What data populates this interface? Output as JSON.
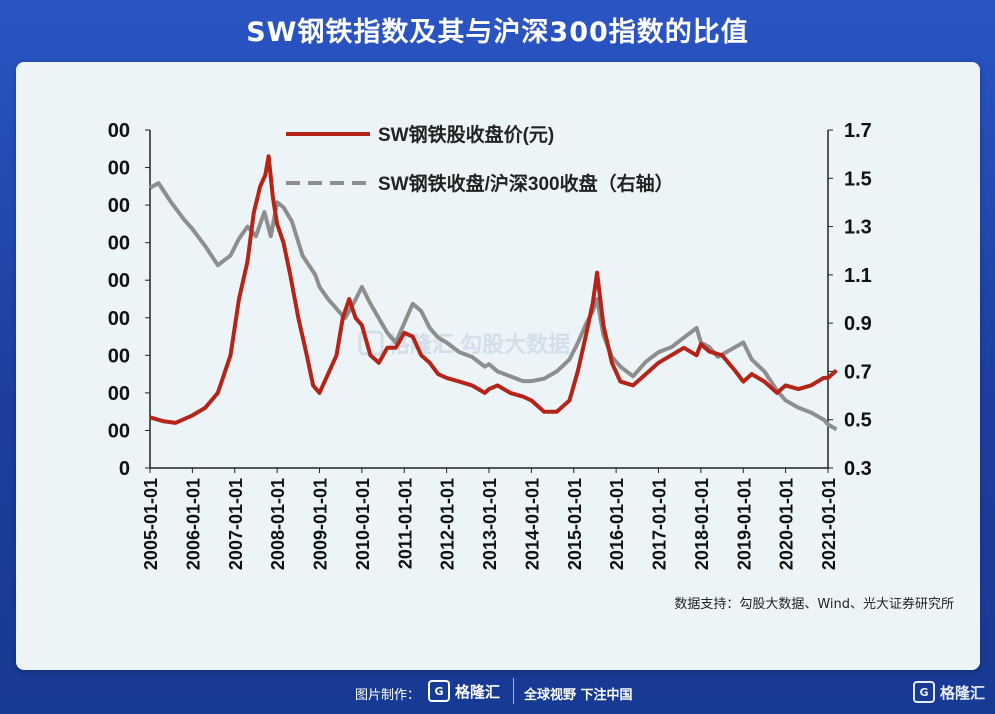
{
  "title": "SW钢铁指数及其与沪深300指数的比值",
  "source": "数据支持：勾股大数据、Wind、光大证券研究所",
  "footer": {
    "made_by": "图片制作：",
    "logo": "格隆汇",
    "slogan": "全球视野 下注中国",
    "corner_logo": "格隆汇"
  },
  "watermark": "格隆汇   勾股大数据",
  "chart_data": {
    "type": "line",
    "x_tick_labels": [
      "2005-01-01",
      "2006-01-01",
      "2007-01-01",
      "2008-01-01",
      "2009-01-01",
      "2010-01-01",
      "2011-01-01",
      "2012-01-01",
      "2013-01-01",
      "2014-01-01",
      "2015-01-01",
      "2016-01-01",
      "2017-01-01",
      "2018-01-01",
      "2019-01-01",
      "2020-01-01",
      "2021-01-01"
    ],
    "y_left_tick_labels": [
      "0",
      "00",
      "00",
      "00",
      "00",
      "00",
      "00",
      "00",
      "00",
      "00"
    ],
    "y_right_tick_labels": [
      "0.3",
      "0.5",
      "0.7",
      "0.9",
      "1.1",
      "1.3",
      "1.5",
      "1.7"
    ],
    "ylim_right": [
      0.3,
      1.7
    ],
    "legend_position": "top-center",
    "colors": {
      "price": "#b52418",
      "ratio": "#8e8e8e"
    },
    "series": [
      {
        "name": "SW钢铁股收盘价(元)",
        "axis": "left",
        "x": [
          2005.0,
          2005.3,
          2005.6,
          2006.0,
          2006.3,
          2006.6,
          2006.9,
          2007.1,
          2007.3,
          2007.45,
          2007.6,
          2007.72,
          2007.8,
          2007.9,
          2008.0,
          2008.15,
          2008.3,
          2008.5,
          2008.7,
          2008.85,
          2009.0,
          2009.2,
          2009.4,
          2009.55,
          2009.7,
          2009.85,
          2010.0,
          2010.2,
          2010.4,
          2010.6,
          2010.8,
          2011.0,
          2011.2,
          2011.4,
          2011.6,
          2011.8,
          2012.0,
          2012.3,
          2012.6,
          2012.9,
          2013.0,
          2013.2,
          2013.5,
          2013.8,
          2014.0,
          2014.3,
          2014.6,
          2014.9,
          2015.1,
          2015.3,
          2015.45,
          2015.55,
          2015.7,
          2015.9,
          2016.1,
          2016.4,
          2016.7,
          2017.0,
          2017.3,
          2017.6,
          2017.9,
          2018.0,
          2018.2,
          2018.5,
          2018.8,
          2019.0,
          2019.2,
          2019.5,
          2019.8,
          2020.0,
          2020.3,
          2020.6,
          2020.9,
          2021.0,
          2021.2
        ],
        "values": [
          1.35,
          1.25,
          1.2,
          1.4,
          1.6,
          2.0,
          3.0,
          4.5,
          5.5,
          6.8,
          7.5,
          7.8,
          8.3,
          7.2,
          6.5,
          6.0,
          5.2,
          4.0,
          3.0,
          2.2,
          2.0,
          2.5,
          3.0,
          4.0,
          4.5,
          4.0,
          3.8,
          3.0,
          2.8,
          3.2,
          3.2,
          3.6,
          3.5,
          3.0,
          2.8,
          2.5,
          2.4,
          2.3,
          2.2,
          2.0,
          2.1,
          2.2,
          2.0,
          1.9,
          1.8,
          1.5,
          1.5,
          1.8,
          2.6,
          3.6,
          4.4,
          5.2,
          3.8,
          2.8,
          2.3,
          2.2,
          2.5,
          2.8,
          3.0,
          3.2,
          3.0,
          3.3,
          3.1,
          3.0,
          2.6,
          2.3,
          2.5,
          2.3,
          2.0,
          2.2,
          2.1,
          2.2,
          2.4,
          2.4,
          2.6
        ]
      },
      {
        "name": "SW钢铁收盘/沪深300收盘（右轴）",
        "axis": "right",
        "x": [
          2005.0,
          2005.2,
          2005.5,
          2005.8,
          2006.0,
          2006.3,
          2006.6,
          2006.9,
          2007.1,
          2007.3,
          2007.5,
          2007.7,
          2007.85,
          2008.0,
          2008.15,
          2008.35,
          2008.6,
          2008.9,
          2009.0,
          2009.2,
          2009.4,
          2009.6,
          2009.8,
          2010.0,
          2010.2,
          2010.4,
          2010.6,
          2010.8,
          2011.0,
          2011.2,
          2011.4,
          2011.6,
          2011.8,
          2012.0,
          2012.3,
          2012.6,
          2012.9,
          2013.0,
          2013.2,
          2013.5,
          2013.8,
          2014.0,
          2014.3,
          2014.6,
          2014.9,
          2015.1,
          2015.3,
          2015.45,
          2015.55,
          2015.7,
          2015.9,
          2016.1,
          2016.4,
          2016.7,
          2017.0,
          2017.3,
          2017.6,
          2017.9,
          2018.0,
          2018.2,
          2018.4,
          2018.7,
          2019.0,
          2019.2,
          2019.5,
          2019.8,
          2020.0,
          2020.3,
          2020.6,
          2020.9,
          2021.0,
          2021.2
        ],
        "values": [
          1.46,
          1.48,
          1.4,
          1.33,
          1.29,
          1.22,
          1.14,
          1.18,
          1.25,
          1.3,
          1.26,
          1.36,
          1.26,
          1.4,
          1.38,
          1.32,
          1.18,
          1.1,
          1.05,
          1.0,
          0.96,
          0.92,
          0.98,
          1.05,
          0.98,
          0.92,
          0.86,
          0.82,
          0.9,
          0.98,
          0.95,
          0.88,
          0.84,
          0.82,
          0.78,
          0.76,
          0.72,
          0.73,
          0.7,
          0.68,
          0.66,
          0.66,
          0.67,
          0.7,
          0.75,
          0.82,
          0.9,
          0.95,
          1.0,
          0.85,
          0.76,
          0.72,
          0.68,
          0.74,
          0.78,
          0.8,
          0.84,
          0.88,
          0.82,
          0.8,
          0.76,
          0.79,
          0.82,
          0.75,
          0.7,
          0.62,
          0.58,
          0.55,
          0.53,
          0.5,
          0.48,
          0.46
        ]
      }
    ]
  }
}
